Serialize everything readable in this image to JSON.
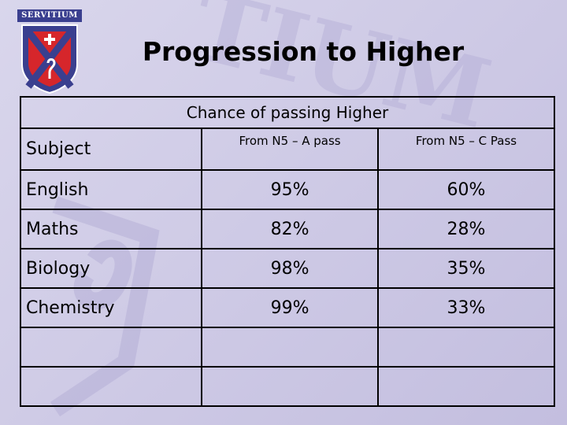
{
  "title": "Progression to Higher",
  "logo": {
    "text": "SERVITIUM"
  },
  "table": {
    "caption": "Chance of passing Higher",
    "subject_header": "Subject",
    "columns": [
      "From N5 – A pass",
      "From N5 – C Pass"
    ],
    "rows": [
      {
        "subject": "English",
        "a_pass": "95%",
        "c_pass": "60%"
      },
      {
        "subject": "Maths",
        "a_pass": "82%",
        "c_pass": "28%"
      },
      {
        "subject": "Biology",
        "a_pass": "98%",
        "c_pass": "35%"
      },
      {
        "subject": "Chemistry",
        "a_pass": "99%",
        "c_pass": "33%"
      }
    ]
  },
  "colors": {
    "logo_blue": "#3a3f8f",
    "logo_red": "#d6262b",
    "background": "#d3d0e9"
  }
}
